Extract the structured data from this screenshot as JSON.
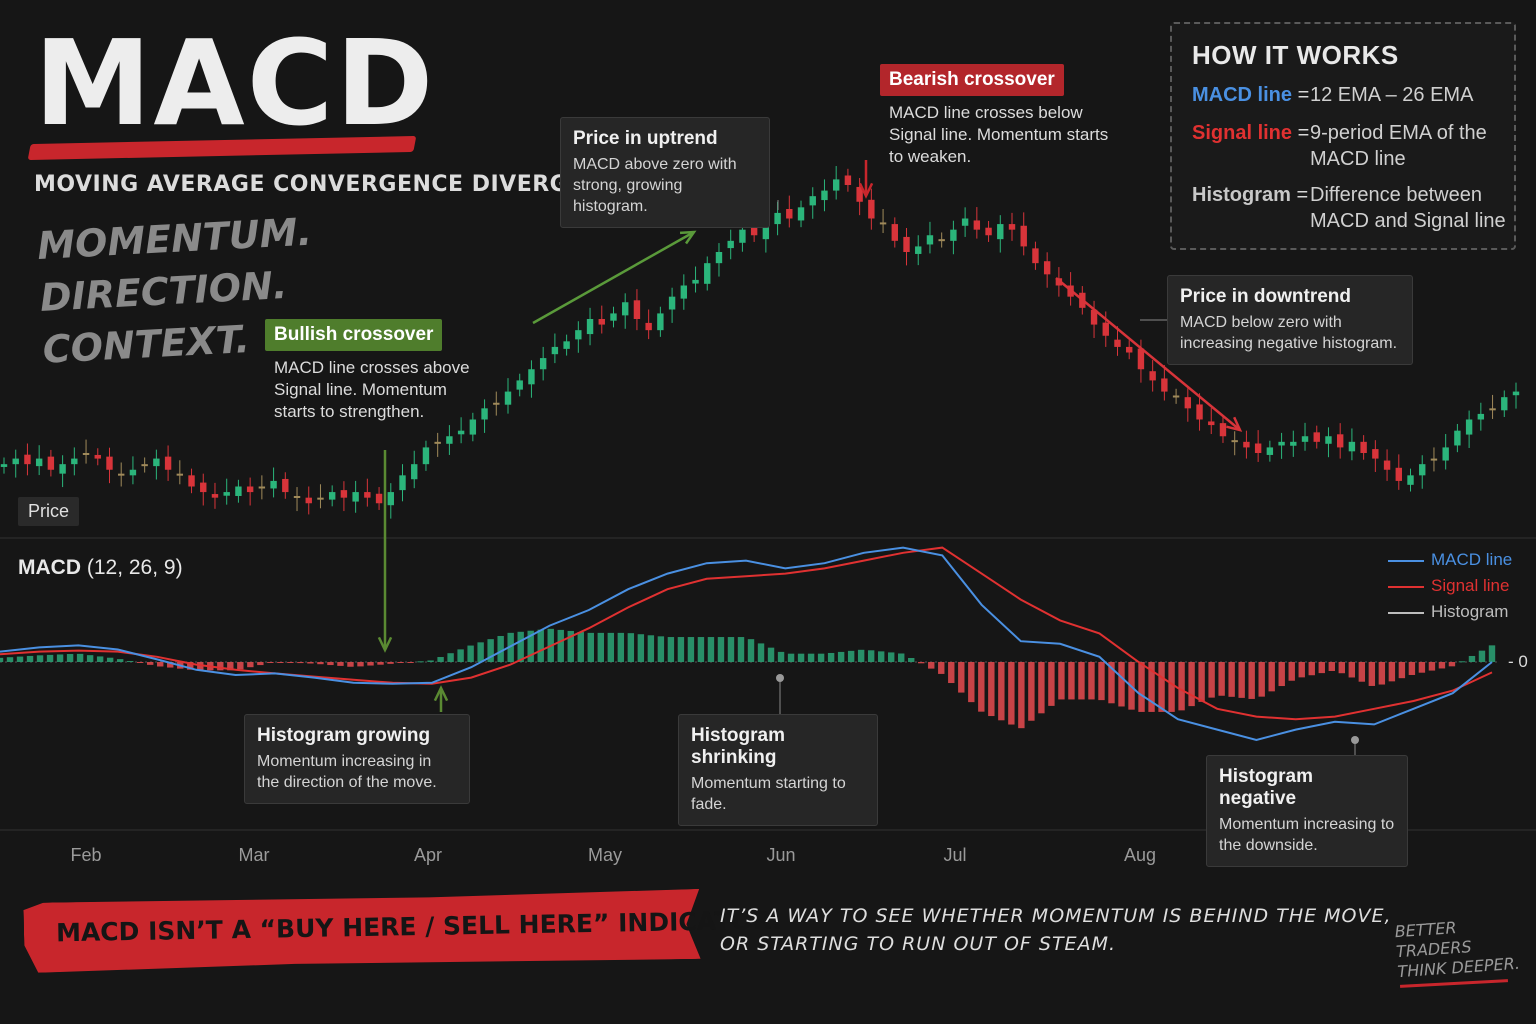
{
  "header": {
    "title": "MACD",
    "subtitle": "MOVING AVERAGE CONVERGENCE DIVERGENCE",
    "tagline": [
      "MOMENTUM.",
      "DIRECTION.",
      "CONTEXT."
    ]
  },
  "how_it_works": {
    "heading": "HOW IT WORKS",
    "rows": [
      {
        "key": "MACD line",
        "value": "12 EMA – 26 EMA",
        "color": "#4a90e2"
      },
      {
        "key": "Signal line",
        "value": "9-period EMA of the MACD line",
        "color": "#e03131"
      },
      {
        "key": "Histogram",
        "value": "Difference between MACD and Signal line",
        "color": "#c8c8c8"
      }
    ]
  },
  "annotations": {
    "bearish": {
      "tag": "Bearish crossover",
      "text": "MACD line crosses below Signal line. Momentum starts to weaken.",
      "color": "#b3262b"
    },
    "bullish": {
      "tag": "Bullish crossover",
      "text": "MACD line crosses above Signal line. Momentum starts to strengthen.",
      "color": "#5a8a32"
    },
    "uptrend": {
      "title": "Price in uptrend",
      "text": "MACD above zero with strong, growing histogram."
    },
    "downtrend": {
      "title": "Price in downtrend",
      "text": "MACD below zero with increasing negative histogram."
    },
    "hist_growing": {
      "title": "Histogram growing",
      "text": "Momentum increasing in the direction of the move."
    },
    "hist_shrinking": {
      "title": "Histogram shrinking",
      "text": "Momentum starting to fade."
    },
    "hist_negative": {
      "title": "Histogram negative",
      "text": "Momentum increasing to the downside."
    }
  },
  "panels": {
    "price_label": "Price",
    "macd_label": "MACD",
    "macd_params": "(12, 26, 9)",
    "zero_label": "0"
  },
  "legend": [
    {
      "label": "MACD line",
      "color": "#4a90e2"
    },
    {
      "label": "Signal line",
      "color": "#e03131"
    },
    {
      "label": "Histogram",
      "color": "#bdbdbd"
    }
  ],
  "footer": {
    "banner": "MACD ISN’T A “BUY HERE / SELL HERE” INDICATOR.",
    "quote": [
      "IT’S A WAY TO SEE WHETHER MOMENTUM IS BEHIND THE MOVE,",
      "OR STARTING TO RUN OUT OF STEAM."
    ],
    "signature": [
      "BETTER",
      "TRADERS",
      "THINK DEEPER."
    ]
  },
  "colors": {
    "bull": "#2bb57b",
    "bear": "#d8343a",
    "neutral": "#a08a5a",
    "hist_pos": "#2a9a70",
    "hist_neg": "#d8484c",
    "accent_red": "#c8262c",
    "accent_green": "#5a8a32"
  },
  "chart_data": [
    {
      "type": "candlestick",
      "name": "Price",
      "x_ticks": [
        "Feb",
        "Mar",
        "Apr",
        "May",
        "Jun",
        "Jul",
        "Aug"
      ],
      "close": [
        50,
        51,
        50,
        51,
        49,
        50,
        51,
        52,
        51,
        49,
        48,
        49,
        50,
        51,
        49,
        48,
        46,
        45,
        44,
        45,
        46,
        45,
        46,
        47,
        45,
        44,
        43,
        44,
        45,
        44,
        45,
        44,
        43,
        45,
        48,
        50,
        53,
        54,
        55,
        56,
        58,
        60,
        61,
        63,
        65,
        67,
        69,
        71,
        72,
        74,
        76,
        75,
        77,
        79,
        76,
        74,
        77,
        80,
        82,
        83,
        86,
        88,
        90,
        92,
        91,
        93,
        95,
        94,
        96,
        98,
        99,
        101,
        100,
        97,
        94,
        93,
        90,
        88,
        89,
        91,
        90,
        92,
        94,
        92,
        91,
        93,
        92,
        89,
        86,
        84,
        82,
        80,
        78,
        75,
        73,
        71,
        70,
        67,
        65,
        63,
        62,
        60,
        58,
        57,
        55,
        54,
        53,
        52,
        53,
        54,
        54,
        55,
        54,
        55,
        53,
        54,
        52,
        51,
        49,
        47,
        48,
        50,
        51,
        53,
        56,
        58,
        59,
        60,
        62,
        63
      ],
      "ylabel": ""
    },
    {
      "type": "line",
      "name": "MACD (12, 26, 9)",
      "series": [
        {
          "name": "MACD line",
          "values": [
            0.2,
            0.28,
            0.32,
            0.24,
            0.05,
            -0.15,
            -0.25,
            -0.22,
            -0.3,
            -0.4,
            -0.42,
            -0.4,
            -0.1,
            0.3,
            0.7,
            1.0,
            1.4,
            1.7,
            1.9,
            1.95,
            1.8,
            1.9,
            2.1,
            2.2,
            2.05,
            1.1,
            0.4,
            0.35,
            0.1,
            -0.6,
            -1.1,
            -1.3,
            -1.5,
            -1.3,
            -1.15,
            -1.2,
            -0.9,
            -0.6,
            0.0
          ]
        },
        {
          "name": "Signal line",
          "values": [
            0.15,
            0.2,
            0.22,
            0.2,
            0.1,
            -0.05,
            -0.15,
            -0.22,
            -0.28,
            -0.34,
            -0.4,
            -0.42,
            -0.3,
            -0.05,
            0.3,
            0.65,
            1.05,
            1.4,
            1.6,
            1.65,
            1.7,
            1.8,
            1.95,
            2.1,
            2.2,
            1.7,
            1.2,
            0.8,
            0.55,
            0.0,
            -0.5,
            -0.9,
            -1.05,
            -1.1,
            -1.05,
            -0.9,
            -0.75,
            -0.55,
            -0.2
          ]
        }
      ],
      "zero_line": 0
    }
  ]
}
